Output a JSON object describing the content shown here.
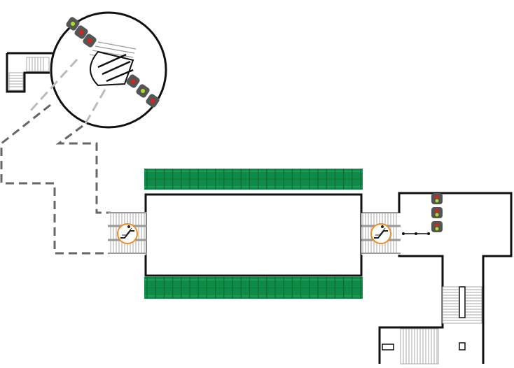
{
  "diagram": {
    "kind": "station-floor-plan",
    "colors": {
      "wall": "#111111",
      "track": "#0f8a47",
      "track_light": "#1ea55a",
      "dashed_path": "#666666",
      "dashed_leader": "#bdbdbd",
      "escalator_ring": "#f08a24",
      "signal_body": "#555555",
      "signal_red": "#e02020",
      "signal_green": "#a8e020",
      "stairs": "#999999"
    },
    "icons": [
      "escalator-icon",
      "signal-light-icon",
      "gate-icon",
      "stairs-icon",
      "door-icon"
    ]
  }
}
